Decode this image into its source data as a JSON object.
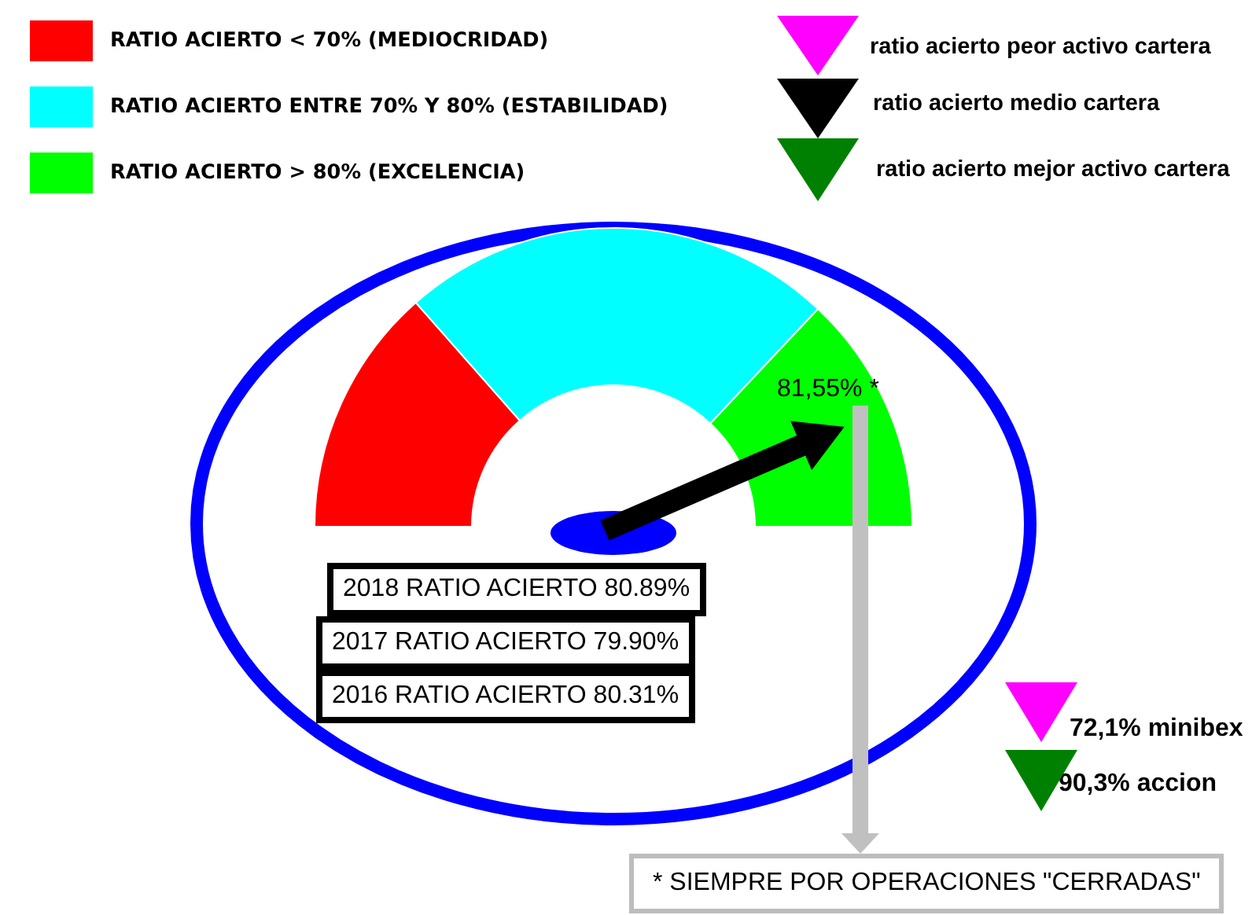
{
  "chart_data": {
    "type": "donut",
    "categories": [
      "RATIO ACIERTO < 70% (MEDIOCRIDAD)",
      "RATIO ACIERTO ENTRE 70% Y 80% (ESTABILIDAD)",
      "RATIO ACIERTO > 80% (EXCELENCIA)"
    ],
    "values": [
      27,
      47,
      26
    ],
    "colors": [
      "#ff0000",
      "#00ffff",
      "#00ff00"
    ],
    "needle": "RATIO ACIERTO > 80% (EXCELENCIA)",
    "legend": "top left",
    "annotations": [
      "ratio acierto peor activo cartera",
      "ratio acierto medio cartera",
      "ratio acierto mejor activo cartera",
      "81,55% *",
      "2018 RATIO ACIERTO 80.89%",
      "2017 RATIO ACIERTO 79.90%",
      "2016 RATIO ACIERTO 80.31%",
      "72,1% minibex",
      "90,3% accion",
      "* SIEMPRE POR OPERACIONES \"CERRADAS\""
    ]
  }
}
